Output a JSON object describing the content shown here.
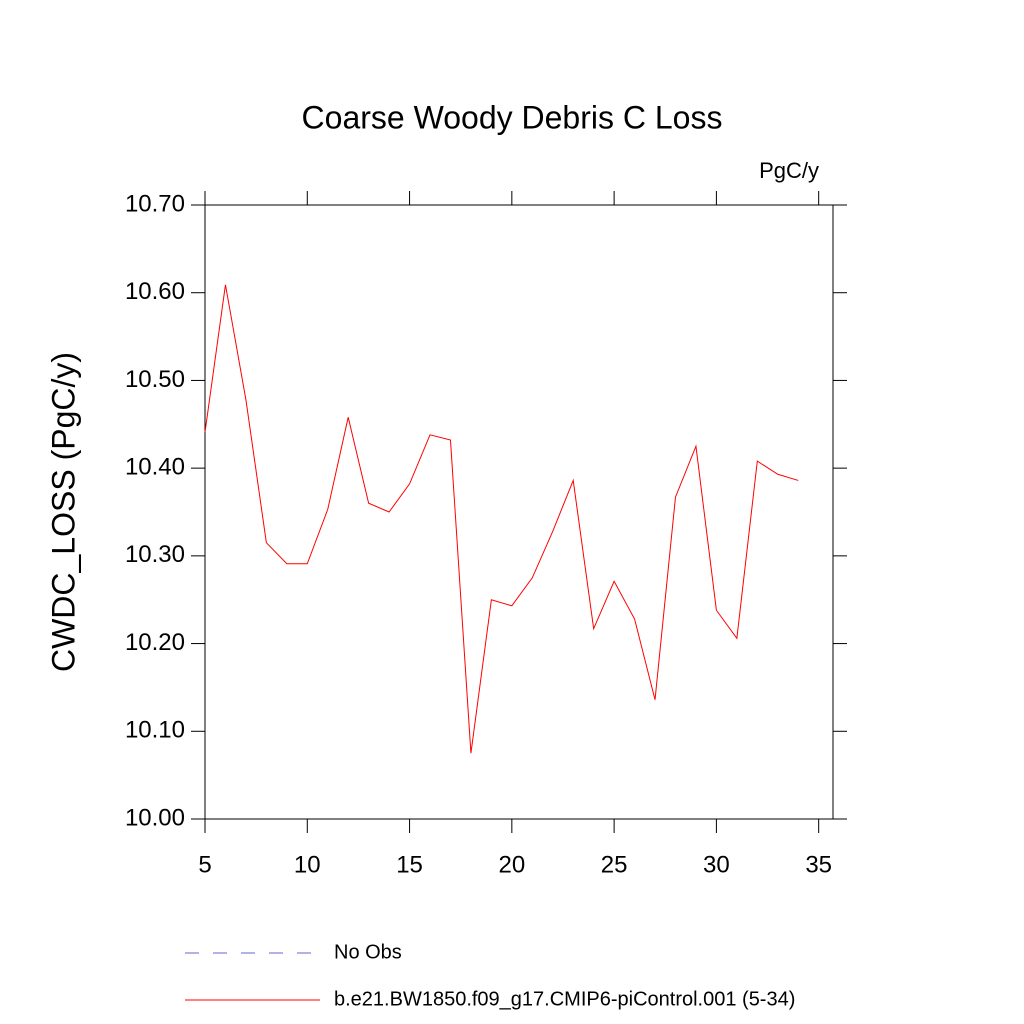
{
  "chart_data": {
    "type": "line",
    "title": "Coarse Woody Debris C Loss",
    "units": "PgC/y",
    "y_label": "CWDC_LOSS  (PgC/y)",
    "x": [
      5,
      6,
      7,
      8,
      9,
      10,
      11,
      12,
      13,
      14,
      15,
      16,
      17,
      18,
      19,
      20,
      21,
      22,
      23,
      24,
      25,
      26,
      27,
      28,
      29,
      30,
      31,
      32,
      33,
      34
    ],
    "series": [
      {
        "name": "No Obs",
        "color": "#6666cc",
        "dash": true,
        "values": [
          null,
          null,
          null,
          null,
          null,
          null,
          null,
          null,
          null,
          null,
          null,
          null,
          null,
          null,
          null,
          null,
          null,
          null,
          null,
          null,
          null,
          null,
          null,
          null,
          null,
          null,
          null,
          null,
          null,
          null
        ]
      },
      {
        "name": "b.e21.BW1850.f09_g17.CMIP6-piControl.001 (5-34)",
        "color": "#ff0000",
        "dash": false,
        "values": [
          10.441,
          10.609,
          10.478,
          10.315,
          10.291,
          10.291,
          10.353,
          10.458,
          10.36,
          10.35,
          10.382,
          10.438,
          10.432,
          10.075,
          10.25,
          10.243,
          10.275,
          10.328,
          10.386,
          10.217,
          10.271,
          10.228,
          10.136,
          10.367,
          10.425,
          10.238,
          10.206,
          10.408,
          10.393,
          10.386
        ]
      }
    ],
    "xlim": [
      5,
      35.7
    ],
    "xticks": [
      5,
      10,
      15,
      20,
      25,
      30,
      35
    ],
    "ylim": [
      10.0,
      10.7
    ],
    "yticks": [
      {
        "value": 10.0,
        "label": "10.00"
      },
      {
        "value": 10.1,
        "label": "10.10"
      },
      {
        "value": 10.2,
        "label": "10.20"
      },
      {
        "value": 10.3,
        "label": "10.30"
      },
      {
        "value": 10.4,
        "label": "10.40"
      },
      {
        "value": 10.5,
        "label": "10.50"
      },
      {
        "value": 10.6,
        "label": "10.60"
      },
      {
        "value": 10.7,
        "label": "10.70"
      }
    ]
  }
}
